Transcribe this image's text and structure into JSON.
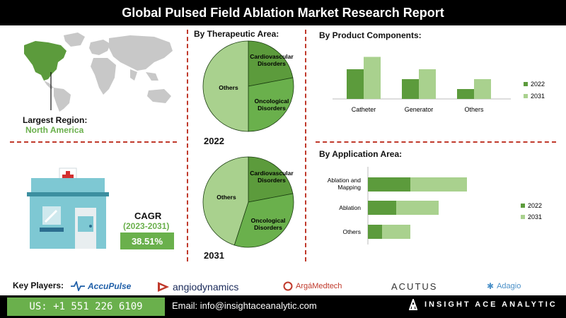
{
  "title": "Global Pulsed Field Ablation Market Research Report",
  "region": {
    "label": "Largest Region:",
    "value": "North America"
  },
  "cagr": {
    "label": "CAGR",
    "period": "(2023-2031)",
    "value": "38.51%"
  },
  "colors": {
    "dark_green": "#5c9b3c",
    "light_green": "#a9d18e",
    "mid_green": "#6ab04c",
    "map_gray": "#c8c8c8",
    "divider": "#c0392b"
  },
  "chart_data": [
    {
      "type": "pie",
      "title": "By  Therapeutic Area:",
      "caption": "2022",
      "slices": [
        {
          "label": "Cardiovascular Disorders",
          "value": 22
        },
        {
          "label": "Oncological Disorders",
          "value": 28
        },
        {
          "label": "Others",
          "value": 50
        }
      ]
    },
    {
      "type": "pie",
      "caption": "2031",
      "slices": [
        {
          "label": "Cardiovascular Disorders",
          "value": 22
        },
        {
          "label": "Oncological Disorders",
          "value": 33
        },
        {
          "label": "Others",
          "value": 45
        }
      ]
    },
    {
      "type": "bar",
      "title": "By Product Components:",
      "categories": [
        "Catheter",
        "Generator",
        "Others"
      ],
      "series": [
        {
          "name": "2022",
          "values": [
            60,
            40,
            20
          ]
        },
        {
          "name": "2031",
          "values": [
            85,
            60,
            40
          ]
        }
      ],
      "ylim": [
        0,
        100
      ],
      "legend": "right"
    },
    {
      "type": "bar",
      "orientation": "horizontal-stacked",
      "title": "By Application Area:",
      "categories": [
        "Ablation and Mapping",
        "Ablation",
        "Others"
      ],
      "series": [
        {
          "name": "2022",
          "values": [
            30,
            20,
            10
          ]
        },
        {
          "name": "2031",
          "values": [
            40,
            30,
            20
          ]
        }
      ],
      "xlim": [
        0,
        100
      ],
      "legend": "right"
    }
  ],
  "footer": {
    "key_players_label": "Key Players:",
    "players": [
      "AccuPulse",
      "angiodynamics",
      "ArgáMedtech",
      "ACUTUS",
      "Adagio"
    ],
    "phone": "US: +1 551 226 6109",
    "email": "Email: info@insightaceanalytic.com",
    "brand": "INSIGHT ACE ANALYTIC"
  }
}
